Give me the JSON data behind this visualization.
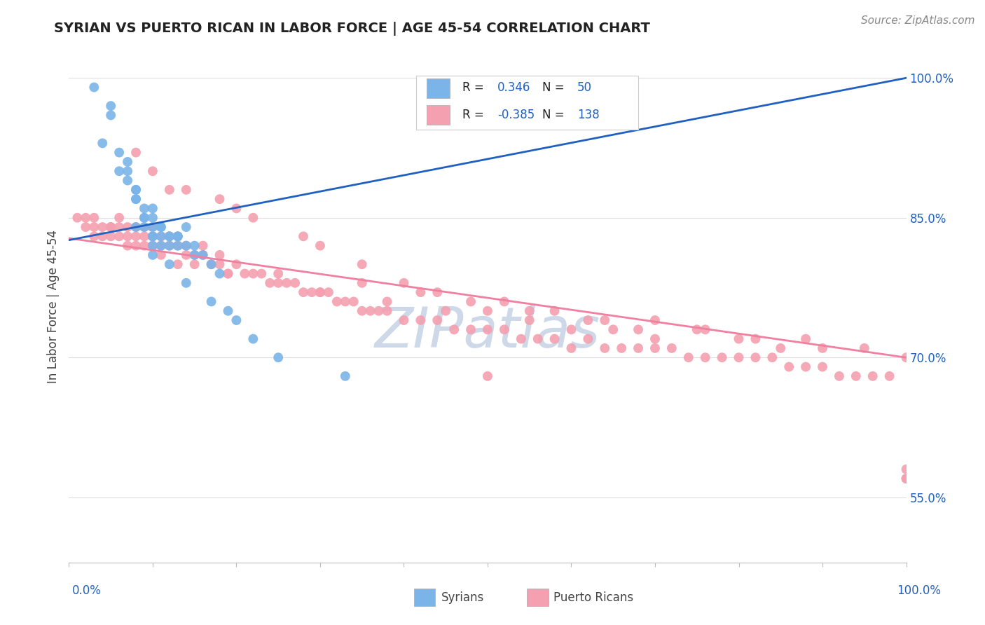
{
  "title": "SYRIAN VS PUERTO RICAN IN LABOR FORCE | AGE 45-54 CORRELATION CHART",
  "source_text": "Source: ZipAtlas.com",
  "ylabel": "In Labor Force | Age 45-54",
  "x_min": 0.0,
  "x_max": 1.0,
  "y_min": 0.48,
  "y_max": 1.03,
  "y_ticks": [
    0.55,
    0.7,
    0.85,
    1.0
  ],
  "y_tick_labels": [
    "55.0%",
    "70.0%",
    "85.0%",
    "100.0%"
  ],
  "syrian_color": "#7ab4e8",
  "puerto_rican_color": "#f4a0b0",
  "syrian_line_color": "#2060c0",
  "puerto_rican_line_color": "#f080a0",
  "syrian_R": 0.346,
  "syrian_N": 50,
  "puerto_rican_R": -0.385,
  "puerto_rican_N": 138,
  "background_color": "#ffffff",
  "grid_color": "#dddddd",
  "watermark_text": "ZIPatlas",
  "watermark_color": "#cdd8e8",
  "legend_color": "#2060c0",
  "syrian_line_x0": 0.0,
  "syrian_line_y0": 0.826,
  "syrian_line_x1": 1.0,
  "syrian_line_y1": 1.0,
  "pr_line_x0": 0.0,
  "pr_line_y0": 0.828,
  "pr_line_x1": 1.0,
  "pr_line_y1": 0.7,
  "syrian_x": [
    0.03,
    0.05,
    0.05,
    0.06,
    0.07,
    0.07,
    0.07,
    0.08,
    0.08,
    0.08,
    0.08,
    0.09,
    0.09,
    0.09,
    0.09,
    0.1,
    0.1,
    0.1,
    0.1,
    0.1,
    0.1,
    0.11,
    0.11,
    0.11,
    0.11,
    0.12,
    0.12,
    0.12,
    0.13,
    0.13,
    0.13,
    0.14,
    0.14,
    0.15,
    0.15,
    0.16,
    0.17,
    0.18,
    0.19,
    0.2,
    0.22,
    0.25,
    0.33,
    0.04,
    0.06,
    0.08,
    0.1,
    0.12,
    0.14,
    0.17
  ],
  "syrian_y": [
    0.99,
    0.97,
    0.96,
    0.92,
    0.91,
    0.9,
    0.89,
    0.88,
    0.88,
    0.87,
    0.87,
    0.86,
    0.85,
    0.85,
    0.84,
    0.86,
    0.85,
    0.84,
    0.83,
    0.83,
    0.82,
    0.84,
    0.84,
    0.83,
    0.82,
    0.83,
    0.83,
    0.82,
    0.83,
    0.83,
    0.82,
    0.84,
    0.82,
    0.82,
    0.81,
    0.81,
    0.8,
    0.79,
    0.75,
    0.74,
    0.72,
    0.7,
    0.68,
    0.93,
    0.9,
    0.84,
    0.81,
    0.8,
    0.78,
    0.76
  ],
  "puerto_rican_x": [
    0.01,
    0.02,
    0.02,
    0.03,
    0.03,
    0.04,
    0.04,
    0.05,
    0.05,
    0.06,
    0.06,
    0.06,
    0.07,
    0.07,
    0.08,
    0.08,
    0.08,
    0.09,
    0.09,
    0.1,
    0.1,
    0.1,
    0.11,
    0.11,
    0.12,
    0.12,
    0.13,
    0.13,
    0.14,
    0.14,
    0.15,
    0.16,
    0.16,
    0.17,
    0.18,
    0.18,
    0.19,
    0.2,
    0.21,
    0.22,
    0.23,
    0.24,
    0.25,
    0.26,
    0.27,
    0.28,
    0.29,
    0.3,
    0.31,
    0.32,
    0.33,
    0.34,
    0.35,
    0.36,
    0.37,
    0.38,
    0.4,
    0.42,
    0.44,
    0.46,
    0.48,
    0.5,
    0.52,
    0.54,
    0.56,
    0.58,
    0.6,
    0.62,
    0.64,
    0.66,
    0.68,
    0.7,
    0.72,
    0.74,
    0.76,
    0.78,
    0.8,
    0.82,
    0.84,
    0.86,
    0.88,
    0.9,
    0.92,
    0.94,
    0.96,
    0.98,
    1.0,
    1.0,
    1.0,
    0.5,
    0.08,
    0.1,
    0.12,
    0.14,
    0.18,
    0.2,
    0.22,
    0.28,
    0.3,
    0.35,
    0.4,
    0.44,
    0.5,
    0.55,
    0.6,
    0.65,
    0.7,
    0.8,
    0.85,
    0.9,
    0.03,
    0.05,
    0.07,
    0.09,
    0.11,
    0.13,
    0.15,
    0.19,
    0.25,
    0.3,
    0.38,
    0.45,
    0.55,
    0.62,
    0.68,
    0.75,
    0.82,
    0.88,
    0.95,
    1.0,
    0.35,
    0.42,
    0.48,
    0.52,
    0.58,
    0.64,
    0.7,
    0.76
  ],
  "puerto_rican_y": [
    0.85,
    0.84,
    0.85,
    0.83,
    0.85,
    0.84,
    0.83,
    0.84,
    0.83,
    0.84,
    0.85,
    0.83,
    0.83,
    0.84,
    0.83,
    0.84,
    0.82,
    0.83,
    0.84,
    0.83,
    0.82,
    0.84,
    0.82,
    0.83,
    0.82,
    0.83,
    0.82,
    0.83,
    0.81,
    0.82,
    0.81,
    0.81,
    0.82,
    0.8,
    0.8,
    0.81,
    0.79,
    0.8,
    0.79,
    0.79,
    0.79,
    0.78,
    0.79,
    0.78,
    0.78,
    0.77,
    0.77,
    0.77,
    0.77,
    0.76,
    0.76,
    0.76,
    0.75,
    0.75,
    0.75,
    0.75,
    0.74,
    0.74,
    0.74,
    0.73,
    0.73,
    0.73,
    0.73,
    0.72,
    0.72,
    0.72,
    0.71,
    0.72,
    0.71,
    0.71,
    0.71,
    0.71,
    0.71,
    0.7,
    0.7,
    0.7,
    0.7,
    0.7,
    0.7,
    0.69,
    0.69,
    0.69,
    0.68,
    0.68,
    0.68,
    0.68,
    0.57,
    0.58,
    0.57,
    0.68,
    0.92,
    0.9,
    0.88,
    0.88,
    0.87,
    0.86,
    0.85,
    0.83,
    0.82,
    0.8,
    0.78,
    0.77,
    0.75,
    0.75,
    0.73,
    0.73,
    0.72,
    0.72,
    0.71,
    0.71,
    0.84,
    0.84,
    0.82,
    0.82,
    0.81,
    0.8,
    0.8,
    0.79,
    0.78,
    0.77,
    0.76,
    0.75,
    0.74,
    0.74,
    0.73,
    0.73,
    0.72,
    0.72,
    0.71,
    0.7,
    0.78,
    0.77,
    0.76,
    0.76,
    0.75,
    0.74,
    0.74,
    0.73
  ]
}
